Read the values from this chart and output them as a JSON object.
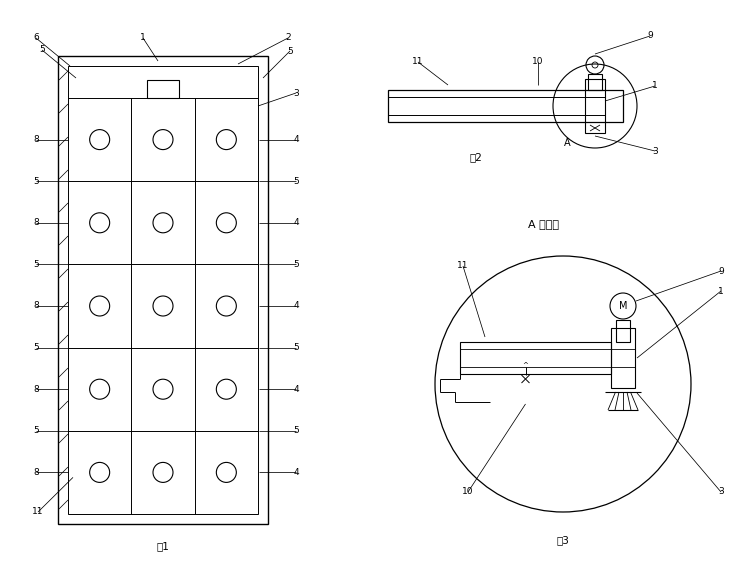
{
  "bg_color": "#ffffff",
  "line_color": "#000000",
  "fig1_title": "图1",
  "fig2_title": "图2",
  "fig3_title": "图3",
  "fig3_subtitle": "A 处放大"
}
